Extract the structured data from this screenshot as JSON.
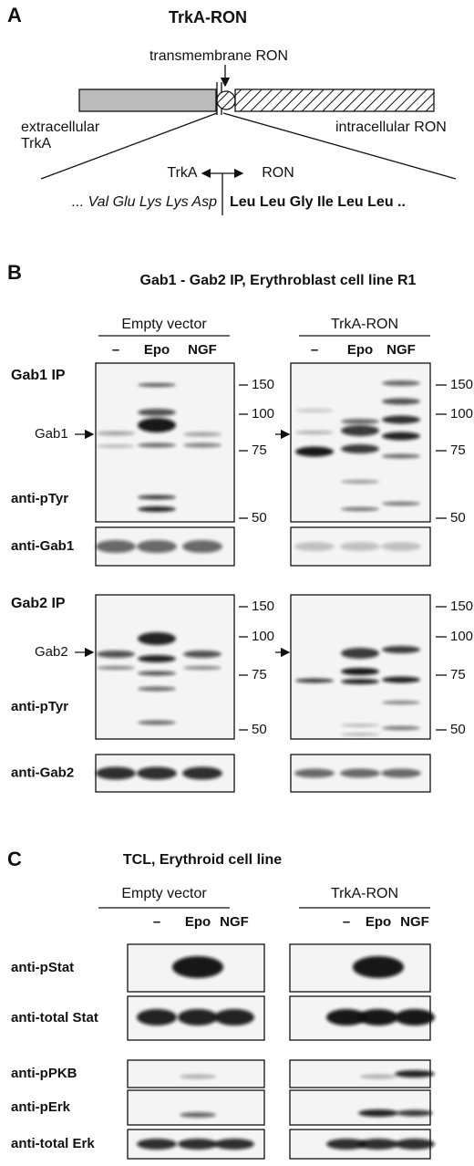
{
  "panel_a": {
    "letter": "A",
    "title": "TrkA-RON",
    "transmembrane_label": "transmembrane RON",
    "extracellular_label": [
      "extracellular",
      "TrkA"
    ],
    "intracellular_label": "intracellular RON",
    "junction_left": "TrkA",
    "junction_right": "RON",
    "sequence_trka": "... Val Glu Lys Lys Asp",
    "sequence_ron": "Leu Leu Gly Ile Leu Leu .."
  },
  "panel_b": {
    "letter": "B",
    "title": "Gab1 - Gab2 IP, Erythroblast cell line R1",
    "groups": [
      "Empty vector",
      "TrkA-RON"
    ],
    "lanes": [
      "–",
      "Epo",
      "NGF"
    ],
    "ip_blocks": [
      {
        "title": "Gab1 IP",
        "protein": "Gab1",
        "blot": "anti-pTyr",
        "loading": "anti-Gab1",
        "markers": [
          150,
          100,
          75,
          50
        ]
      },
      {
        "title": "Gab2 IP",
        "protein": "Gab2",
        "blot": "anti-pTyr",
        "loading": "anti-Gab2",
        "markers": [
          150,
          100,
          75,
          50
        ]
      }
    ]
  },
  "panel_c": {
    "letter": "C",
    "title": "TCL, Erythroid cell line",
    "groups": [
      "Empty vector",
      "TrkA-RON"
    ],
    "lanes": [
      "–",
      "Epo",
      "NGF"
    ],
    "blots": [
      "anti-pStat",
      "anti-total Stat",
      "anti-pPKB",
      "anti-pErk",
      "anti-total Erk"
    ]
  }
}
